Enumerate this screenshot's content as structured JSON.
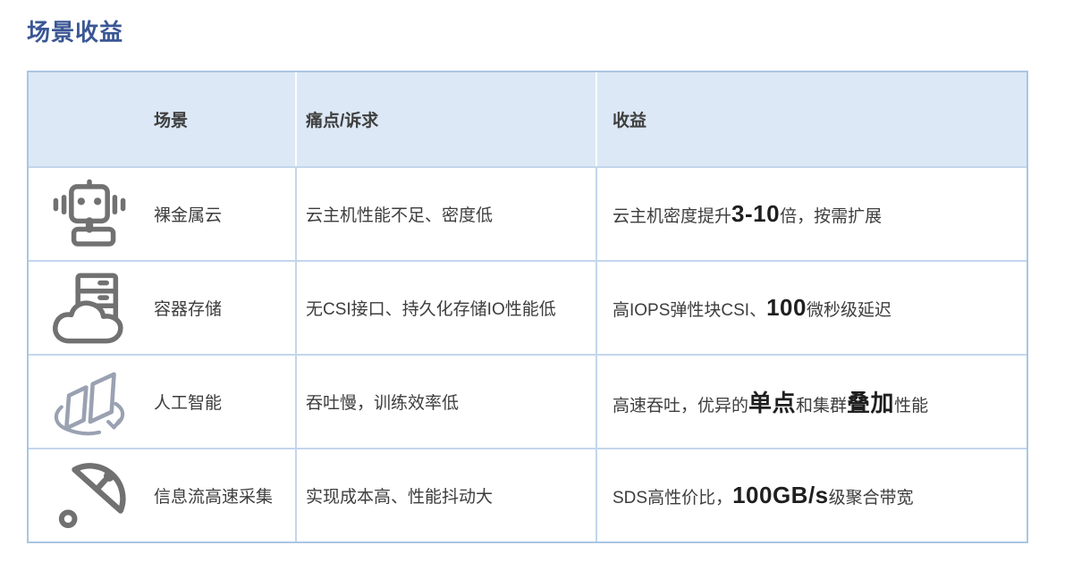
{
  "page": {
    "title": "场景收益"
  },
  "table": {
    "headers": [
      {
        "label": "场景"
      },
      {
        "label": "痛点/诉求"
      },
      {
        "label": "收益"
      }
    ],
    "rows": [
      {
        "icon": "robot-icon",
        "scenario": "裸金属云",
        "pain": "云主机性能不足、密度低",
        "benefit": [
          {
            "t": "云主机密度提升"
          },
          {
            "t": "3-10",
            "b": true
          },
          {
            "t": "倍，按需扩展"
          }
        ]
      },
      {
        "icon": "cloud-server-icon",
        "scenario": "容器存储",
        "pain": "无CSI接口、持久化存储IO性能低",
        "benefit": [
          {
            "t": "高IOPS弹性块CSI、"
          },
          {
            "t": "100",
            "b": true
          },
          {
            "t": "微秒级延迟"
          }
        ]
      },
      {
        "icon": "ai-sync-icon",
        "scenario": "人工智能",
        "pain": "吞吐慢，训练效率低",
        "benefit": [
          {
            "t": "高速吞吐，优异的"
          },
          {
            "t": "单点",
            "b": true
          },
          {
            "t": "和集群"
          },
          {
            "t": "叠加",
            "b": true
          },
          {
            "t": "性能"
          }
        ]
      },
      {
        "icon": "satellite-dish-icon",
        "scenario": "信息流高速采集",
        "pain": "实现成本高、性能抖动大",
        "benefit": [
          {
            "t": "SDS高性价比，"
          },
          {
            "t": "100GB/s",
            "b": true
          },
          {
            "t": "级聚合带宽"
          }
        ]
      }
    ]
  },
  "colors": {
    "title_blue": "#3a5694",
    "header_bg": "#dce8f5",
    "table_border": "#aac5e4",
    "body_text": "#3d3d3d",
    "emphasis_text": "#1f1f1f",
    "icon_gray": "#717171",
    "ai_icon_gray": "#9aa1b1"
  }
}
